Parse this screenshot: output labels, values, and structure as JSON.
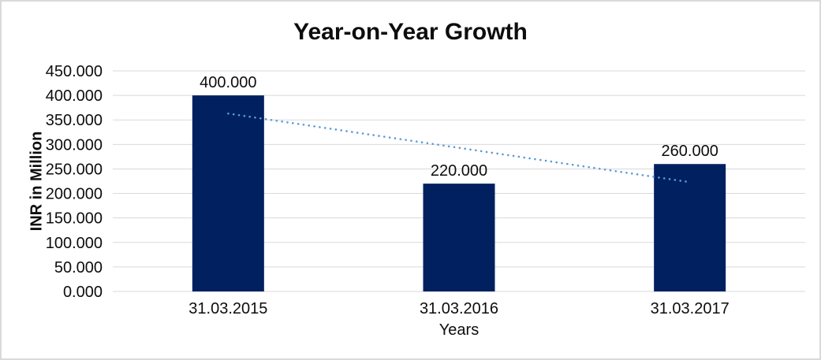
{
  "chart_data": {
    "type": "bar",
    "title": "Year-on-Year Growth",
    "xlabel": "Years",
    "ylabel": "INR in Million",
    "categories": [
      "31.03.2015",
      "31.03.2016",
      "31.03.2017"
    ],
    "values": [
      400,
      220,
      260
    ],
    "data_labels": [
      "400.000",
      "220.000",
      "260.000"
    ],
    "y_tick_labels": [
      "0.000",
      "50.000",
      "100.000",
      "150.000",
      "200.000",
      "250.000",
      "300.000",
      "350.000",
      "400.000",
      "450.000"
    ],
    "y_tick_step": 50,
    "ylim": [
      0,
      450
    ],
    "grid": true,
    "legend": "none",
    "trendline": {
      "style": "dotted",
      "color": "#5B9BD5",
      "points": [
        {
          "category_index": 0,
          "value": 363
        },
        {
          "category_index": 2,
          "value": 223
        }
      ]
    },
    "colors": {
      "bar": "#002060",
      "gridline": "#D9D9D9",
      "axis_line": "#D9D9D9",
      "text": "#0D0D0D"
    }
  }
}
